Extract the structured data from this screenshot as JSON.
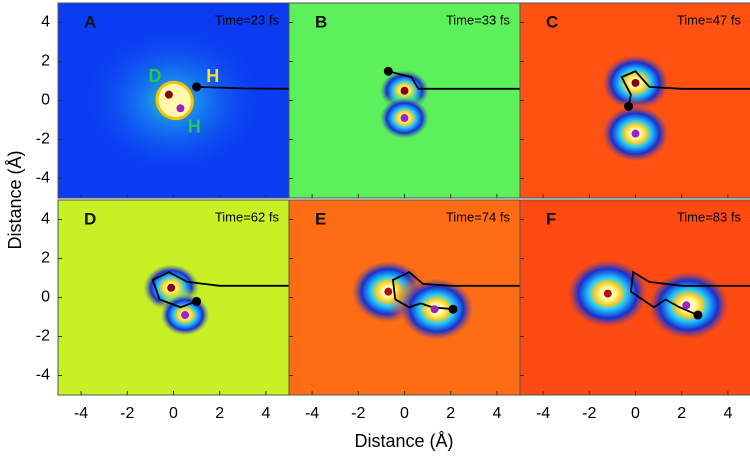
{
  "x_label": "Distance (Å)",
  "y_label": "Distance (Å)",
  "chart_data": [
    {
      "type": "heatmap",
      "label": "A",
      "title": "Time=23 fs",
      "color": "#0b3cf2",
      "xlim": [
        -5,
        5
      ],
      "ylim": [
        -5,
        5
      ],
      "xticks": [
        -4,
        -2,
        0,
        2,
        4
      ],
      "yticks": [
        -4,
        -2,
        0,
        2,
        4
      ],
      "annotations": [
        "D",
        "H",
        "H"
      ]
    },
    {
      "type": "heatmap",
      "label": "B",
      "title": "Time=33 fs",
      "color": "#5cf05a",
      "xlim": [
        -5,
        5
      ],
      "ylim": [
        -5,
        5
      ],
      "xticks": [
        -4,
        -2,
        0,
        2,
        4
      ],
      "yticks": [
        -4,
        -2,
        0,
        2,
        4
      ]
    },
    {
      "type": "heatmap",
      "label": "C",
      "title": "Time=47 fs",
      "color": "#ff5212",
      "xlim": [
        -5,
        5
      ],
      "ylim": [
        -5,
        5
      ],
      "xticks": [
        -4,
        -2,
        0,
        2,
        4
      ],
      "yticks": [
        -4,
        -2,
        0,
        2,
        4
      ]
    },
    {
      "type": "heatmap",
      "label": "D",
      "title": "Time=62 fs",
      "color": "#c8f024",
      "xlim": [
        -5,
        5
      ],
      "ylim": [
        -5,
        5
      ],
      "xticks": [
        -4,
        -2,
        0,
        2,
        4
      ],
      "yticks": [
        -4,
        -2,
        0,
        2,
        4
      ]
    },
    {
      "type": "heatmap",
      "label": "E",
      "title": "Time=74 fs",
      "color": "#ff6c14",
      "xlim": [
        -5,
        5
      ],
      "ylim": [
        -5,
        5
      ],
      "xticks": [
        -4,
        -2,
        0,
        2,
        4
      ],
      "yticks": [
        -4,
        -2,
        0,
        2,
        4
      ]
    },
    {
      "type": "heatmap",
      "label": "F",
      "title": "Time=83 fs",
      "color": "#ff4a12",
      "xlim": [
        -5,
        5
      ],
      "ylim": [
        -5,
        5
      ],
      "xticks": [
        -4,
        -2,
        0,
        2,
        4
      ],
      "yticks": [
        -4,
        -2,
        0,
        2,
        4
      ]
    }
  ]
}
